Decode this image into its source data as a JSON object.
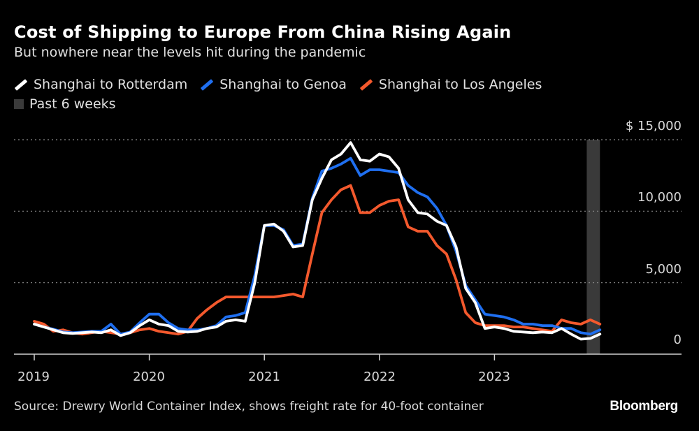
{
  "title": "Cost of Shipping to Europe From China Rising Again",
  "subtitle": "But nowhere near the levels hit during the pandemic",
  "legend": [
    {
      "label": "Shanghai to Rotterdam",
      "color": "#ffffff",
      "kind": "line"
    },
    {
      "label": "Shanghai to Genoa",
      "color": "#1f6ff0",
      "kind": "line"
    },
    {
      "label": "Shanghai to Los Angeles",
      "color": "#f4592d",
      "kind": "line"
    },
    {
      "label": "Past 6 weeks",
      "color": "#3a3a3a",
      "kind": "box"
    }
  ],
  "source": "Source: Drewry World Container Index, shows freight rate for 40-foot container",
  "logo": "Bloomberg",
  "chart_data": {
    "type": "line",
    "title": "Cost of Shipping to Europe From China Rising Again",
    "subtitle": "But nowhere near the levels hit during the pandemic",
    "xlabel": "",
    "ylabel": "",
    "ylim": [
      0,
      15000
    ],
    "y_ticks": [
      {
        "value": 15000,
        "label": "$ 15,000"
      },
      {
        "value": 10000,
        "label": "10,000"
      },
      {
        "value": 5000,
        "label": "5,000"
      },
      {
        "value": 0,
        "label": "0"
      }
    ],
    "x_ticks": [
      "2019",
      "2020",
      "2021",
      "2022",
      "2023"
    ],
    "grid": "horizontal dotted",
    "y_axis_position": "right",
    "legend_position": "top-left",
    "shaded_period": {
      "label": "Past 6 weeks",
      "start": "2023-10-20",
      "end": "2023-12-01",
      "color": "#3a3a3a"
    },
    "x": [
      "2019-01",
      "2019-02",
      "2019-03",
      "2019-04",
      "2019-05",
      "2019-06",
      "2019-07",
      "2019-08",
      "2019-09",
      "2019-10",
      "2019-11",
      "2019-12",
      "2020-01",
      "2020-02",
      "2020-03",
      "2020-04",
      "2020-05",
      "2020-06",
      "2020-07",
      "2020-08",
      "2020-09",
      "2020-10",
      "2020-11",
      "2020-12",
      "2021-01",
      "2021-02",
      "2021-03",
      "2021-04",
      "2021-05",
      "2021-06",
      "2021-07",
      "2021-08",
      "2021-09",
      "2021-10",
      "2021-11",
      "2021-12",
      "2022-01",
      "2022-02",
      "2022-03",
      "2022-04",
      "2022-05",
      "2022-06",
      "2022-07",
      "2022-08",
      "2022-09",
      "2022-10",
      "2022-11",
      "2022-12",
      "2023-01",
      "2023-02",
      "2023-03",
      "2023-04",
      "2023-05",
      "2023-06",
      "2023-07",
      "2023-08",
      "2023-09",
      "2023-10",
      "2023-11",
      "2023-12"
    ],
    "series": [
      {
        "name": "Shanghai to Rotterdam",
        "color": "#ffffff",
        "values": [
          2100,
          1900,
          1700,
          1500,
          1450,
          1500,
          1550,
          1500,
          1700,
          1300,
          1500,
          2000,
          2400,
          2100,
          2000,
          1600,
          1550,
          1600,
          1800,
          1900,
          2300,
          2400,
          2300,
          5000,
          9000,
          9100,
          8600,
          7500,
          7600,
          10800,
          12300,
          13600,
          14000,
          14800,
          13600,
          13500,
          14000,
          13800,
          13000,
          10800,
          9900,
          9800,
          9300,
          9000,
          7500,
          4600,
          3600,
          1800,
          1900,
          1800,
          1600,
          1550,
          1500,
          1550,
          1500,
          1800,
          1400,
          1050,
          1100,
          1400
        ]
      },
      {
        "name": "Shanghai to Genoa",
        "color": "#1f6ff0",
        "values": [
          2100,
          1900,
          1750,
          1550,
          1500,
          1550,
          1600,
          1600,
          2100,
          1400,
          1550,
          2200,
          2800,
          2800,
          2200,
          1800,
          1700,
          1700,
          1800,
          2000,
          2600,
          2700,
          2900,
          5500,
          9000,
          9000,
          8700,
          7600,
          7700,
          10900,
          12800,
          13000,
          13300,
          13700,
          12500,
          12900,
          12900,
          12800,
          12700,
          11800,
          11300,
          11000,
          10200,
          9000,
          7200,
          4800,
          3800,
          2800,
          2700,
          2600,
          2400,
          2100,
          2100,
          2000,
          2000,
          1800,
          1800,
          1500,
          1400,
          1700
        ]
      },
      {
        "name": "Shanghai to Los Angeles",
        "color": "#f4592d",
        "values": [
          2300,
          2100,
          1600,
          1700,
          1500,
          1400,
          1500,
          1600,
          1500,
          1400,
          1500,
          1700,
          1800,
          1600,
          1500,
          1400,
          1600,
          2500,
          3100,
          3600,
          4000,
          4000,
          4000,
          4000,
          4000,
          4000,
          4100,
          4200,
          4000,
          7000,
          9900,
          10800,
          11500,
          11800,
          9900,
          9900,
          10400,
          10700,
          10800,
          8900,
          8600,
          8600,
          7600,
          7000,
          5200,
          2900,
          2200,
          2000,
          2000,
          2000,
          1900,
          1900,
          1800,
          1700,
          1600,
          2400,
          2200,
          2100,
          2400,
          2100
        ]
      }
    ]
  }
}
